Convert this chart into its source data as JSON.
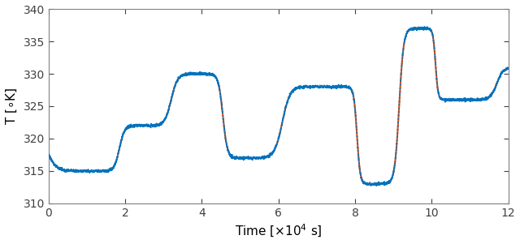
{
  "xlabel": "Time [$\\times 10^4$ s]",
  "ylabel": "T [$\\circ$K]",
  "xlim": [
    0,
    12
  ],
  "ylim": [
    310,
    340
  ],
  "yticks": [
    310,
    315,
    320,
    325,
    330,
    335,
    340
  ],
  "xticks": [
    0,
    2,
    4,
    6,
    8,
    10,
    12
  ],
  "line_red_color": "#d95319",
  "line_blue_color": "#0072bd",
  "figsize": [
    6.4,
    3.01
  ],
  "dpi": 100,
  "noise_std": 0.1,
  "noise_seed": 7
}
